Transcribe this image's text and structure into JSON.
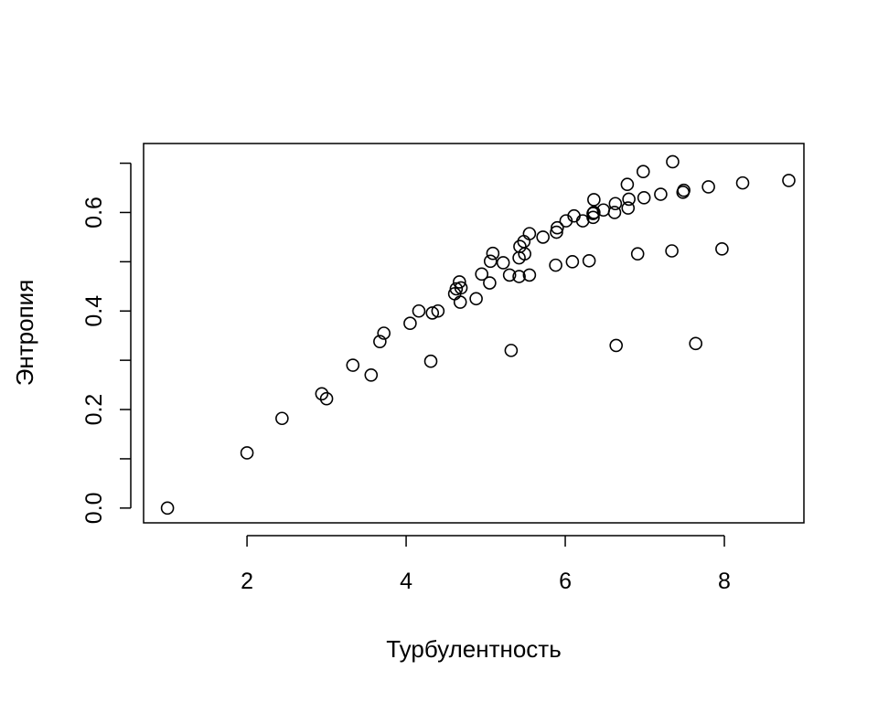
{
  "chart_data": {
    "type": "scatter",
    "title": "",
    "xlabel": "Турбулентность",
    "ylabel": "Энтропия",
    "xlim": [
      0.7,
      9.0
    ],
    "ylim": [
      -0.03,
      0.74
    ],
    "x_ticks": [
      2,
      4,
      6,
      8
    ],
    "x_tick_labels": [
      "2",
      "4",
      "6",
      "8"
    ],
    "y_ticks": [
      0.0,
      0.1,
      0.2,
      0.3,
      0.4,
      0.5,
      0.6,
      0.7
    ],
    "y_tick_labels": [
      "0.0",
      "",
      "0.2",
      "",
      "0.4",
      "",
      "0.6",
      ""
    ],
    "grid": false,
    "marker": "open-circle",
    "marker_color": "#000000",
    "series": [
      {
        "x": [
          1.0,
          2.0,
          2.44,
          2.94,
          3.0,
          3.33,
          3.56,
          3.67,
          3.72,
          4.05,
          4.16,
          4.31,
          4.33,
          4.4,
          4.61,
          4.63,
          4.67,
          4.68,
          4.69,
          4.88,
          4.95,
          5.05,
          5.06,
          5.09,
          5.22,
          5.3,
          5.32,
          5.42,
          5.42,
          5.43,
          5.48,
          5.49,
          5.55,
          5.55,
          5.72,
          5.88,
          5.89,
          5.9,
          6.01,
          6.09,
          6.11,
          6.22,
          6.3,
          6.35,
          6.35,
          6.36,
          6.36,
          6.48,
          6.62,
          6.63,
          6.64,
          6.78,
          6.79,
          6.8,
          6.91,
          6.98,
          6.99,
          7.2,
          7.34,
          7.35,
          7.48,
          7.49,
          7.64,
          7.8,
          7.97,
          8.23,
          8.81
        ],
        "y": [
          0.0,
          0.112,
          0.182,
          0.232,
          0.222,
          0.29,
          0.27,
          0.338,
          0.355,
          0.375,
          0.4,
          0.298,
          0.396,
          0.4,
          0.435,
          0.445,
          0.459,
          0.418,
          0.447,
          0.425,
          0.475,
          0.457,
          0.501,
          0.517,
          0.498,
          0.473,
          0.32,
          0.47,
          0.508,
          0.531,
          0.541,
          0.516,
          0.473,
          0.557,
          0.55,
          0.493,
          0.56,
          0.569,
          0.583,
          0.5,
          0.593,
          0.583,
          0.502,
          0.59,
          0.598,
          0.626,
          0.6,
          0.605,
          0.6,
          0.618,
          0.33,
          0.657,
          0.609,
          0.627,
          0.516,
          0.683,
          0.63,
          0.637,
          0.522,
          0.703,
          0.641,
          0.645,
          0.334,
          0.652,
          0.526,
          0.66,
          0.665
        ]
      }
    ]
  }
}
